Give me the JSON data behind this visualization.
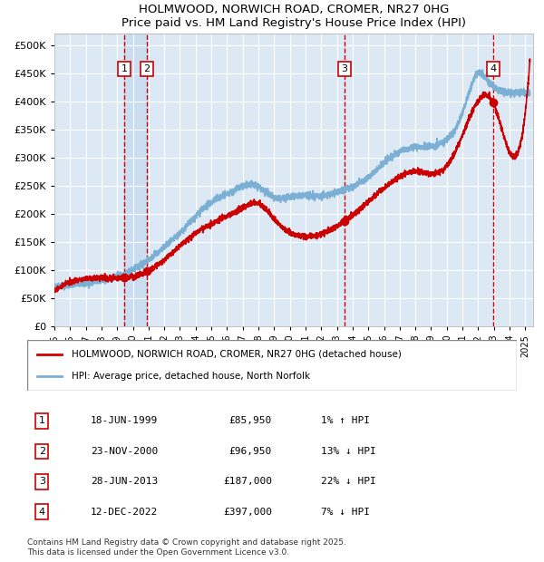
{
  "title": "HOLMWOOD, NORWICH ROAD, CROMER, NR27 0HG",
  "subtitle": "Price paid vs. HM Land Registry's House Price Index (HPI)",
  "ylabel": "",
  "xlim": [
    1995.0,
    2025.5
  ],
  "ylim": [
    0,
    520000
  ],
  "yticks": [
    0,
    50000,
    100000,
    150000,
    200000,
    250000,
    300000,
    350000,
    400000,
    450000,
    500000
  ],
  "ytick_labels": [
    "£0",
    "£50K",
    "£100K",
    "£150K",
    "£200K",
    "£250K",
    "£300K",
    "£350K",
    "£400K",
    "£450K",
    "£500K"
  ],
  "xticks": [
    1995,
    1996,
    1997,
    1998,
    1999,
    2000,
    2001,
    2002,
    2003,
    2004,
    2005,
    2006,
    2007,
    2008,
    2009,
    2010,
    2011,
    2012,
    2013,
    2014,
    2015,
    2016,
    2017,
    2018,
    2019,
    2020,
    2021,
    2022,
    2023,
    2024,
    2025
  ],
  "background_color": "#dce9f5",
  "plot_bg_color": "#dce9f5",
  "grid_color": "#ffffff",
  "hpi_color": "#7bafd4",
  "price_color": "#cc0000",
  "sale_marker_color": "#cc0000",
  "vline_color": "#cc0000",
  "shade_color": "#c5d8ee",
  "transactions": [
    {
      "num": 1,
      "date_num": 1999.464,
      "price": 85950,
      "label": "18-JUN-1999",
      "price_str": "£85,950",
      "pct": "1%",
      "dir": "↑"
    },
    {
      "num": 2,
      "date_num": 2000.897,
      "price": 96950,
      "label": "23-NOV-2000",
      "price_str": "£96,950",
      "pct": "13%",
      "dir": "↓"
    },
    {
      "num": 3,
      "date_num": 2013.489,
      "price": 187000,
      "label": "28-JUN-2013",
      "price_str": "£187,000",
      "pct": "22%",
      "dir": "↓"
    },
    {
      "num": 4,
      "date_num": 2022.947,
      "price": 397000,
      "label": "12-DEC-2022",
      "price_str": "£397,000",
      "pct": "7%",
      "dir": "↓"
    }
  ],
  "legend_line1": "HOLMWOOD, NORWICH ROAD, CROMER, NR27 0HG (detached house)",
  "legend_line2": "HPI: Average price, detached house, North Norfolk",
  "footnote": "Contains HM Land Registry data © Crown copyright and database right 2025.\nThis data is licensed under the Open Government Licence v3.0."
}
